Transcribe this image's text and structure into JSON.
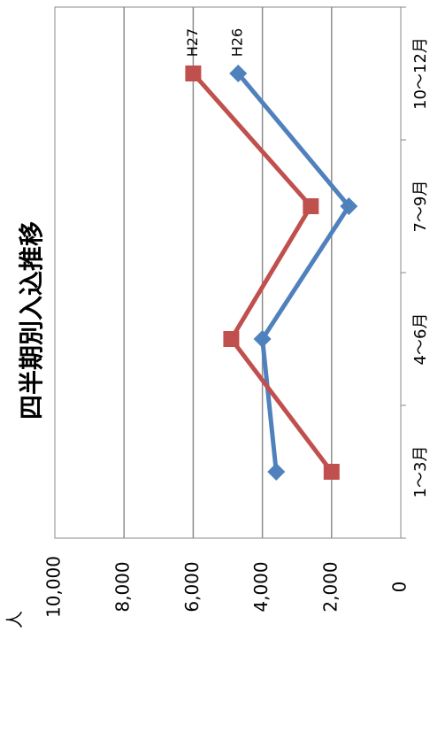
{
  "chart_data": {
    "type": "line",
    "title": "四半期別入込推移",
    "ylabel": "人",
    "categories": [
      "1～3月",
      "4～6月",
      "7～9月",
      "10～12月"
    ],
    "y_ticks": [
      "0",
      "2,000",
      "4,000",
      "6,000",
      "8,000",
      "10,000"
    ],
    "ylim": [
      0,
      10000
    ],
    "grid": true,
    "orientation": "rotated-90",
    "series": [
      {
        "name": "H26",
        "values": [
          3600,
          4000,
          1500,
          4700
        ],
        "color": "#4F81BD",
        "marker": "diamond"
      },
      {
        "name": "H27",
        "values": [
          2000,
          4900,
          2600,
          6000
        ],
        "color": "#C0504D",
        "marker": "square"
      }
    ]
  }
}
